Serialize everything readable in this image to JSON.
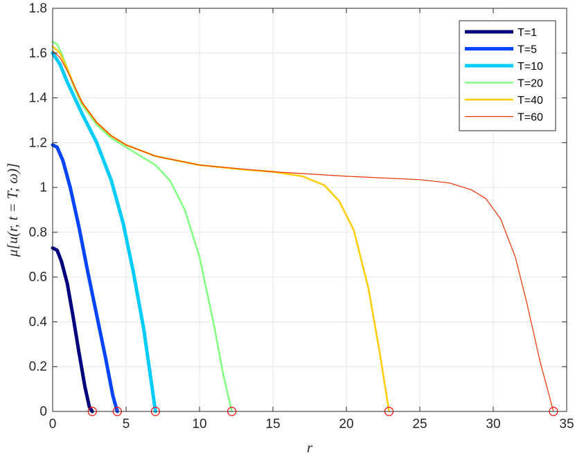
{
  "chart_data": {
    "type": "line",
    "title": "",
    "xlabel": "r",
    "ylabel": "μ[u(r, t = T; ω)]",
    "xlim": [
      0,
      35
    ],
    "ylim": [
      0,
      1.8
    ],
    "xticks": [
      0,
      5,
      10,
      15,
      20,
      25,
      30,
      35
    ],
    "yticks": [
      0,
      0.2,
      0.4,
      0.6,
      0.8,
      1,
      1.2,
      1.4,
      1.6,
      1.8
    ],
    "xtick_labels": [
      "0",
      "5",
      "10",
      "15",
      "20",
      "25",
      "30",
      "35"
    ],
    "ytick_labels": [
      "0",
      "0.2",
      "0.4",
      "0.6",
      "0.8",
      "1",
      "1.2",
      "1.4",
      "1.6",
      "1.8"
    ],
    "grid": true,
    "legend_position": "top-right",
    "series": [
      {
        "name": "T=1",
        "color": "#00007f",
        "width": "thick",
        "x": [
          0,
          0.3,
          0.6,
          1.0,
          1.4,
          1.8,
          2.2,
          2.5,
          2.7
        ],
        "y": [
          0.73,
          0.72,
          0.67,
          0.57,
          0.42,
          0.26,
          0.11,
          0.02,
          0
        ]
      },
      {
        "name": "T=5",
        "color": "#0044ff",
        "width": "thick",
        "x": [
          0,
          0.3,
          0.7,
          1.2,
          1.8,
          2.4,
          3.0,
          3.6,
          4.1,
          4.4
        ],
        "y": [
          1.19,
          1.18,
          1.12,
          1.0,
          0.82,
          0.62,
          0.43,
          0.24,
          0.07,
          0
        ]
      },
      {
        "name": "T=10",
        "color": "#00ccff",
        "width": "thick",
        "x": [
          0,
          0.5,
          1.0,
          2.0,
          3.0,
          4.0,
          4.8,
          5.5,
          6.2,
          6.7,
          7.0
        ],
        "y": [
          1.6,
          1.55,
          1.47,
          1.33,
          1.2,
          1.03,
          0.84,
          0.62,
          0.37,
          0.14,
          0
        ]
      },
      {
        "name": "T=20",
        "color": "#80ff80",
        "width": "medium",
        "x": [
          0,
          0.3,
          0.6,
          1.0,
          1.5,
          2.0,
          3.0,
          4.0,
          5.0,
          6.0,
          7.0,
          8.0,
          9.0,
          10.0,
          11.0,
          11.6,
          12.2
        ],
        "y": [
          1.65,
          1.64,
          1.6,
          1.53,
          1.44,
          1.37,
          1.28,
          1.22,
          1.18,
          1.14,
          1.1,
          1.03,
          0.9,
          0.69,
          0.38,
          0.17,
          0
        ]
      },
      {
        "name": "T=40",
        "color": "#ffcc00",
        "width": "medium",
        "x": [
          0,
          0.5,
          1.0,
          1.5,
          2.0,
          3.0,
          4.0,
          5.0,
          7.0,
          10.0,
          13.0,
          15.0,
          17.0,
          18.5,
          19.5,
          20.5,
          21.5,
          22.3,
          22.9
        ],
        "y": [
          1.63,
          1.6,
          1.53,
          1.45,
          1.38,
          1.29,
          1.23,
          1.19,
          1.14,
          1.1,
          1.08,
          1.07,
          1.05,
          1.01,
          0.94,
          0.81,
          0.55,
          0.25,
          0
        ]
      },
      {
        "name": "T=60",
        "color": "#e83000",
        "width": "thin",
        "x": [
          0,
          0.5,
          1.0,
          1.5,
          2.0,
          3.0,
          4.0,
          5.0,
          7.0,
          10.0,
          15.0,
          20.0,
          25.0,
          27.0,
          28.5,
          29.5,
          30.5,
          31.5,
          32.3,
          33.2,
          34.1
        ],
        "y": [
          1.61,
          1.58,
          1.52,
          1.45,
          1.38,
          1.29,
          1.23,
          1.19,
          1.14,
          1.1,
          1.07,
          1.05,
          1.035,
          1.02,
          0.99,
          0.95,
          0.86,
          0.69,
          0.48,
          0.22,
          0
        ]
      }
    ],
    "endpoint_markers": {
      "shape": "circle",
      "color": "#ff0000",
      "x": [
        2.7,
        4.4,
        7.0,
        12.2,
        22.9,
        34.1
      ],
      "y": [
        0,
        0,
        0,
        0,
        0,
        0
      ]
    }
  }
}
